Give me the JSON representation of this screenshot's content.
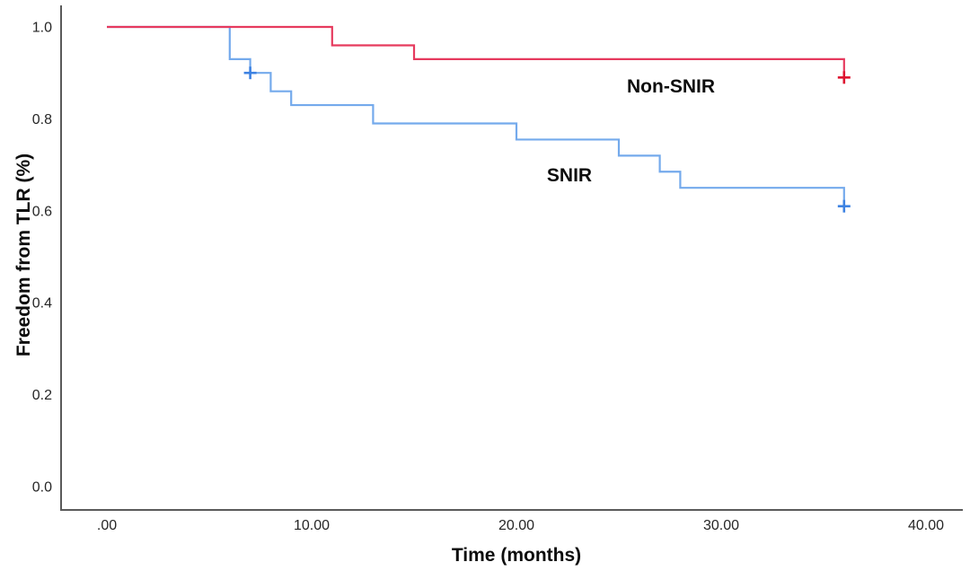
{
  "chart_data": {
    "type": "line",
    "subtype": "kaplan-meier-step-plot",
    "title": "",
    "xlabel": "Time (months)",
    "ylabel": "Freedom from TLR (%)",
    "xlim": [
      0,
      40
    ],
    "ylim": [
      0.0,
      1.0
    ],
    "grid": false,
    "legend_position": "inline-curve-labels",
    "x_ticks": [
      {
        "label": ".00",
        "value": 0
      },
      {
        "label": "10.00",
        "value": 10
      },
      {
        "label": "20.00",
        "value": 20
      },
      {
        "label": "30.00",
        "value": 30
      },
      {
        "label": "40.00",
        "value": 40
      }
    ],
    "y_ticks": [
      {
        "label": "1.0",
        "value": 1.0
      },
      {
        "label": "0.8",
        "value": 0.8
      },
      {
        "label": "0.6",
        "value": 0.6
      },
      {
        "label": "0.4",
        "value": 0.4
      },
      {
        "label": "0.2",
        "value": 0.2
      },
      {
        "label": "0.0",
        "value": 0.0
      }
    ],
    "series": [
      {
        "name": "SNIR",
        "color": "#74aaec",
        "censor_color": "#3d82e2",
        "steps": [
          [
            0,
            1.0
          ],
          [
            6,
            0.93
          ],
          [
            7,
            0.9
          ],
          [
            8,
            0.86
          ],
          [
            9,
            0.83
          ],
          [
            13,
            0.79
          ],
          [
            20,
            0.755
          ],
          [
            25,
            0.72
          ],
          [
            27,
            0.685
          ],
          [
            28,
            0.65
          ],
          [
            36,
            0.61
          ]
        ],
        "censored": [
          [
            7,
            0.9
          ],
          [
            36,
            0.61
          ]
        ],
        "label_position_data": {
          "month": 22.5,
          "value": 0.675
        }
      },
      {
        "name": "Non-SNIR",
        "color": "#e63a5e",
        "censor_color": "#de1430",
        "steps": [
          [
            0,
            1.0
          ],
          [
            11,
            0.96
          ],
          [
            15,
            0.93
          ],
          [
            36,
            0.89
          ]
        ],
        "censored": [
          [
            36,
            0.89
          ]
        ],
        "label_position_data": {
          "month": 27.5,
          "value": 0.87
        }
      }
    ],
    "axis_color": "#5a5a5a",
    "tick_label_color": "#262626",
    "title_color": "#0d0d0d"
  }
}
